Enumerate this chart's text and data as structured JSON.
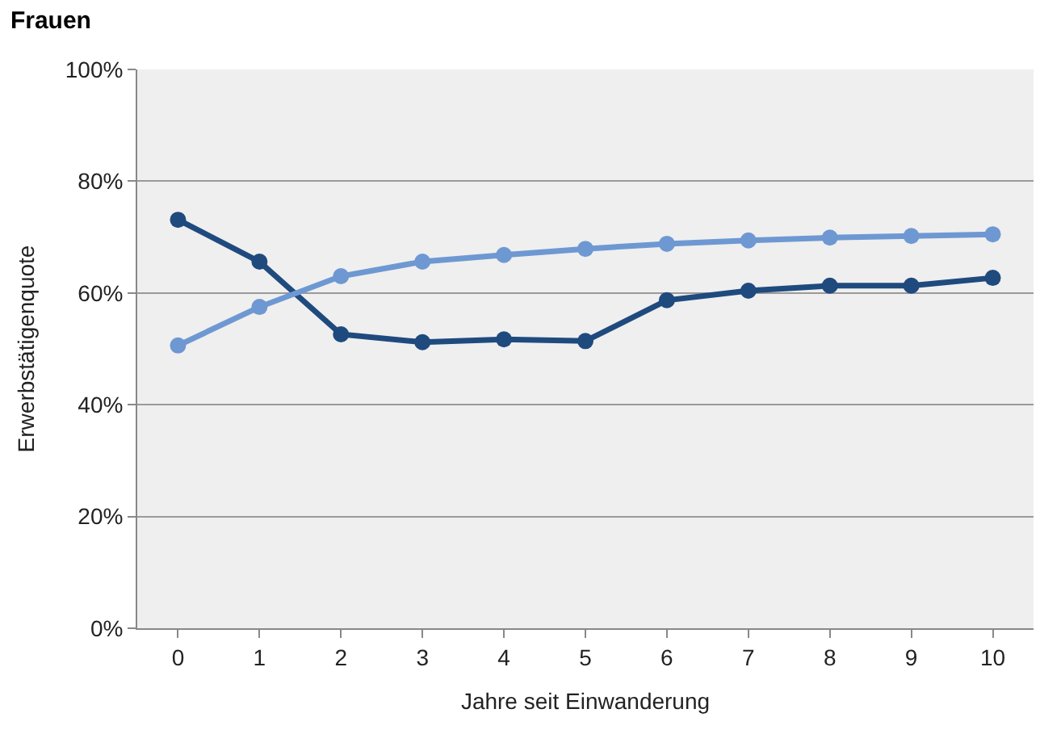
{
  "chart_data": {
    "type": "line",
    "title": "Frauen",
    "xlabel": "Jahre seit Einwanderung",
    "ylabel": "Erwerbstätigenquote",
    "categories": [
      "0",
      "1",
      "2",
      "3",
      "4",
      "5",
      "6",
      "7",
      "8",
      "9",
      "10"
    ],
    "series": [
      {
        "color": "#1f4a7e",
        "values": [
          73.1,
          65.6,
          52.6,
          51.2,
          51.7,
          51.4,
          58.7,
          60.4,
          61.3,
          61.3,
          62.7
        ]
      },
      {
        "color": "#6e98d2",
        "values": [
          50.6,
          57.5,
          63.0,
          65.6,
          66.8,
          67.9,
          68.8,
          69.4,
          69.9,
          70.2,
          70.5
        ]
      }
    ],
    "ylim": [
      0,
      100
    ],
    "yticks": [
      {
        "value": 0,
        "label": "0%"
      },
      {
        "value": 20,
        "label": "20%"
      },
      {
        "value": 40,
        "label": "40%"
      },
      {
        "value": 60,
        "label": "60%"
      },
      {
        "value": 80,
        "label": "80%"
      },
      {
        "value": 100,
        "label": "100%"
      }
    ],
    "grid": "y",
    "marker": "circle",
    "line_style": "solid"
  }
}
